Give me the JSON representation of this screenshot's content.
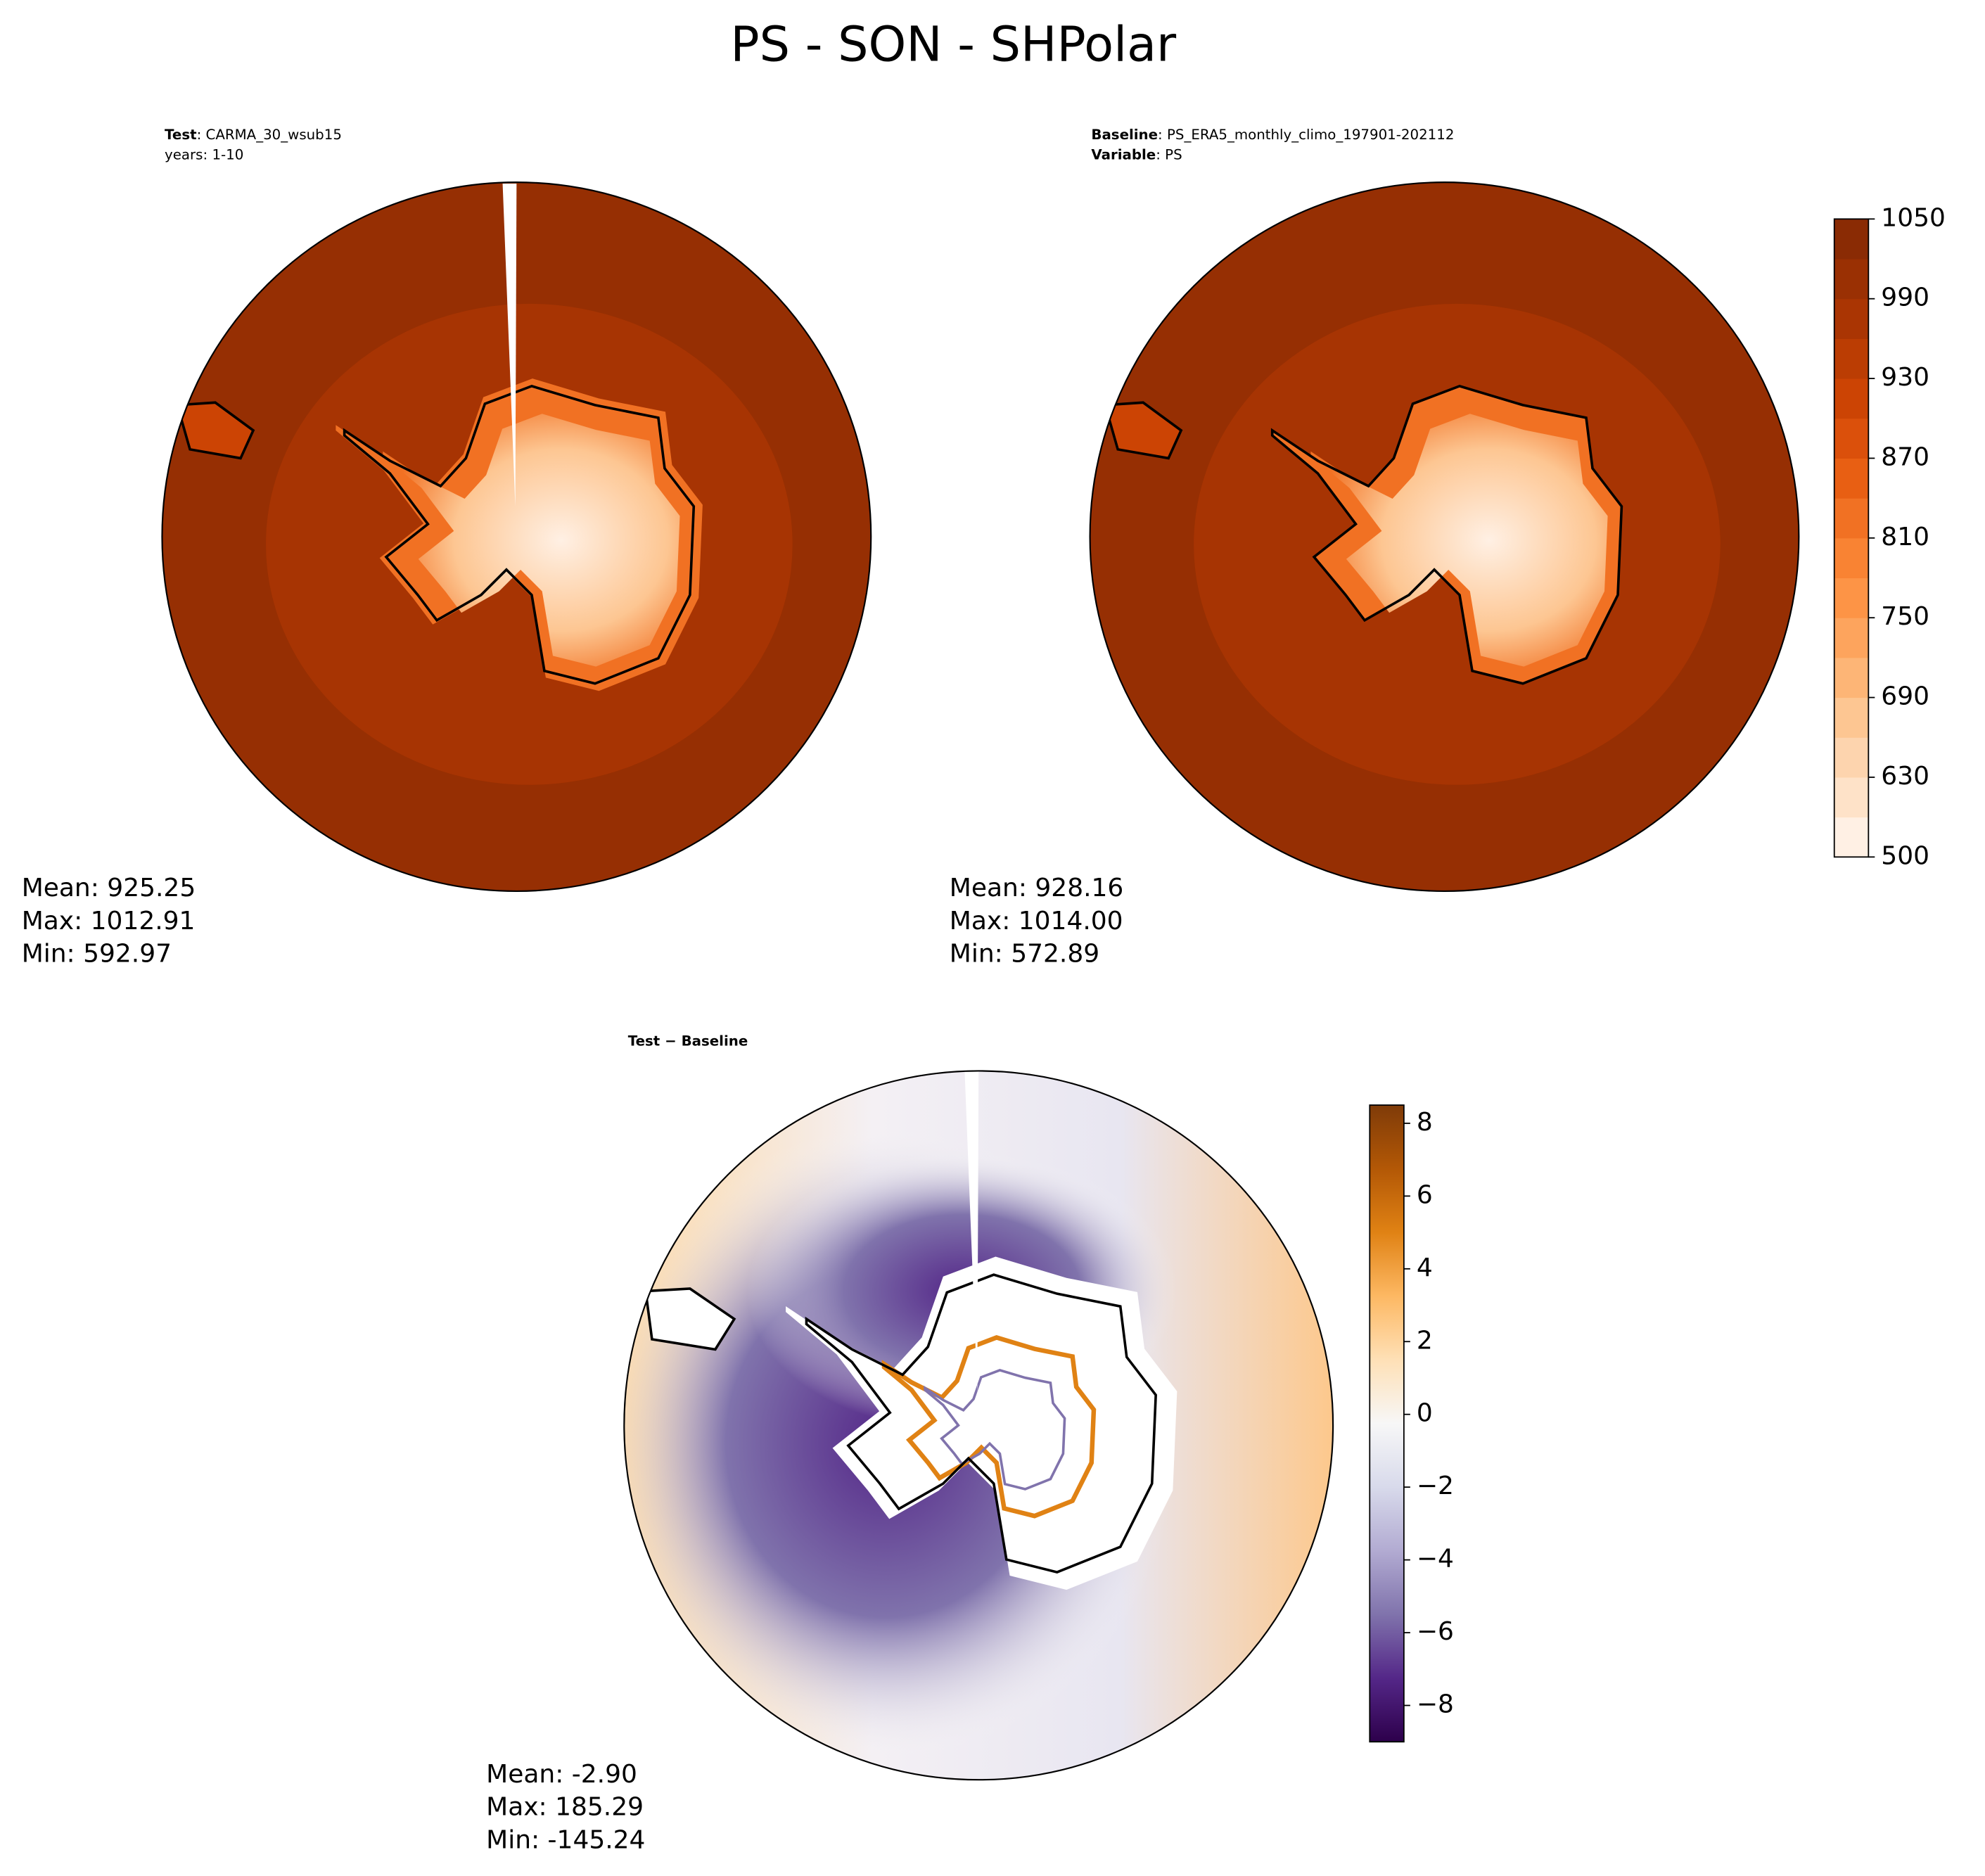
{
  "title": "PS - SON - SHPolar",
  "panels": [
    {
      "header": [
        {
          "bold": "Test",
          "text": ": CARMA_30_wsub15"
        },
        {
          "text": "years: 1-10"
        }
      ],
      "stats": [
        "Mean: 925.25",
        "Max: 1012.91",
        "Min: 592.97"
      ]
    },
    {
      "header": [
        {
          "bold": "Baseline",
          "text": ": PS_ERA5_monthly_climo_197901-202112"
        },
        {
          "bold": "Variable",
          "text": ": PS"
        }
      ],
      "stats": [
        "Mean: 928.16",
        "Max: 1014.00",
        "Min: 572.89"
      ]
    },
    {
      "header": [
        {
          "bold": "Test − Baseline"
        }
      ],
      "stats": [
        "Mean: -2.90",
        "Max: 185.29",
        "Min: -145.24"
      ]
    }
  ],
  "colorbars": [
    {
      "boundaries": [
        500,
        600,
        630,
        660,
        690,
        720,
        750,
        780,
        810,
        840,
        870,
        900,
        930,
        960,
        990,
        1020,
        1050
      ],
      "colors": [
        "#fff0e4",
        "#fee2c8",
        "#fdd4ae",
        "#fdc692",
        "#fdb576",
        "#fda45d",
        "#fd9446",
        "#f98333",
        "#f17123",
        "#e85f13",
        "#db500b",
        "#cc4404",
        "#bb3d03",
        "#aa3503",
        "#9a3003",
        "#8a2b04"
      ],
      "ticks": [
        500,
        630,
        690,
        750,
        810,
        870,
        930,
        990,
        1050
      ]
    },
    {
      "lim": [
        -9,
        8.5
      ],
      "colors": [
        "#2d004b",
        "#542788",
        "#8073ac",
        "#b2abd2",
        "#d8daeb",
        "#f7f7f7",
        "#fee0b6",
        "#fdb863",
        "#e08214",
        "#b35806",
        "#7f3b08"
      ],
      "ticks": [
        {
          "value": -8,
          "label": "−8"
        },
        {
          "value": -6,
          "label": "−6"
        },
        {
          "value": -4,
          "label": "−4"
        },
        {
          "value": -2,
          "label": "−2"
        },
        0,
        2,
        4,
        6,
        8
      ]
    }
  ]
}
